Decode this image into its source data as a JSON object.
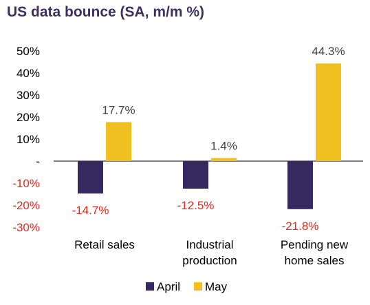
{
  "chart_data": {
    "type": "bar",
    "title": "US data bounce (SA, m/m %)",
    "categories": [
      [
        "Retail sales"
      ],
      [
        "Industrial",
        "production"
      ],
      [
        "Pending new",
        "home sales"
      ]
    ],
    "series": [
      {
        "name": "April",
        "values": [
          -14.7,
          -12.5,
          -21.8
        ],
        "labels": [
          "-14.7%",
          "-12.5%",
          "-21.8%"
        ],
        "color": "#35295f",
        "label_color": "#e8261c"
      },
      {
        "name": "May",
        "values": [
          17.7,
          1.4,
          44.3
        ],
        "labels": [
          "17.7%",
          "1.4%",
          "44.3%"
        ],
        "color": "#f0c020",
        "label_color": "#404040"
      }
    ],
    "yticks": [
      {
        "value": 50,
        "label": "50%"
      },
      {
        "value": 40,
        "label": "40%"
      },
      {
        "value": 30,
        "label": "30%"
      },
      {
        "value": 20,
        "label": "20%"
      },
      {
        "value": 10,
        "label": "10%"
      },
      {
        "value": 0,
        "label": "-"
      },
      {
        "value": -10,
        "label": "-10%"
      },
      {
        "value": -20,
        "label": "-20%"
      },
      {
        "value": -30,
        "label": "-30%"
      }
    ],
    "ylim": [
      -30,
      50
    ],
    "grid": false,
    "legend_position": "bottom-center",
    "negative_tick_color": "#e8261c"
  }
}
